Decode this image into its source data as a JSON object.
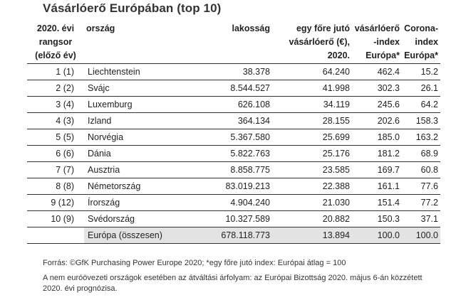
{
  "title": "Vásárlóerő Európában (top 10)",
  "table": {
    "headers": [
      [
        "2020. évi",
        "rangsor",
        "(előző év)"
      ],
      [
        "ország"
      ],
      [
        "lakosság"
      ],
      [
        "egy főre jutó",
        "vásárlóerő (€),",
        "2020."
      ],
      [
        "vásárlóerő",
        "-index",
        "Európa*"
      ],
      [
        "Corona-",
        "index",
        "Európa*"
      ]
    ],
    "rows": [
      [
        "1 (1)",
        "Liechtenstein",
        "38.378",
        "64.240",
        "462.4",
        "15.2"
      ],
      [
        "2 (2)",
        "Svájc",
        "8.544.527",
        "41.998",
        "302.3",
        "26.1"
      ],
      [
        "3 (4)",
        "Luxemburg",
        "626.108",
        "34.119",
        "245.6",
        "64.2"
      ],
      [
        "4 (3)",
        "Izland",
        "364.134",
        "28.155",
        "202.6",
        "158.3"
      ],
      [
        "5 (5)",
        "Norvégia",
        "5.367.580",
        "25.699",
        "185.0",
        "163.2"
      ],
      [
        "6 (6)",
        "Dánia",
        "5.822.763",
        "25.176",
        "181.2",
        "68.9"
      ],
      [
        "7 (7)",
        "Ausztria",
        "8.858.775",
        "23.585",
        "169.7",
        "60.8"
      ],
      [
        "8 (8)",
        "Németország",
        "83.019.213",
        "22.388",
        "161.1",
        "77.6"
      ],
      [
        "9 (12)",
        "Írország",
        "4.904.240",
        "21.030",
        "151.4",
        "77.2"
      ],
      [
        "10 (9)",
        "Svédország",
        "10.327.589",
        "20.882",
        "150.3",
        "37.1"
      ]
    ],
    "total": [
      "",
      "Európa (összesen)",
      "678.118.773",
      "13.894",
      "100.0",
      "100.0"
    ]
  },
  "footnotes": [
    "Forrás: ©GfK Purchasing Power Europe 2020; *egy főre jutó index: Európai átlag = 100",
    "A nem euróövezeti országok esetében az átváltási árfolyam: az Európai Bizottság 2020. május 6-án közzétett 2020. évi prognózisa."
  ]
}
